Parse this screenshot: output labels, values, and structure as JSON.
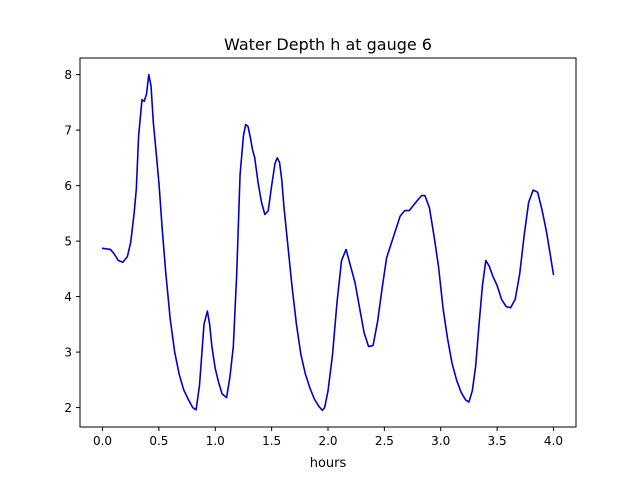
{
  "chart_data": {
    "type": "line",
    "title": "Water Depth h at gauge 6",
    "xlabel": "hours",
    "ylabel": "",
    "xlim": [
      -0.2,
      4.2
    ],
    "ylim": [
      1.65,
      8.3
    ],
    "xticks": [
      0.0,
      0.5,
      1.0,
      1.5,
      2.0,
      2.5,
      3.0,
      3.5,
      4.0
    ],
    "xtick_labels": [
      "0.0",
      "0.5",
      "1.0",
      "1.5",
      "2.0",
      "2.5",
      "3.0",
      "3.5",
      "4.0"
    ],
    "yticks": [
      2,
      3,
      4,
      5,
      6,
      7,
      8
    ],
    "ytick_labels": [
      "2",
      "3",
      "4",
      "5",
      "6",
      "7",
      "8"
    ],
    "grid": false,
    "series": [
      {
        "color": "#0000cc",
        "x": [
          0.0,
          0.07,
          0.1,
          0.14,
          0.18,
          0.22,
          0.25,
          0.28,
          0.3,
          0.32,
          0.35,
          0.37,
          0.39,
          0.41,
          0.43,
          0.45,
          0.48,
          0.5,
          0.53,
          0.56,
          0.6,
          0.64,
          0.68,
          0.72,
          0.76,
          0.8,
          0.83,
          0.86,
          0.88,
          0.9,
          0.93,
          0.95,
          0.97,
          1.0,
          1.03,
          1.06,
          1.1,
          1.13,
          1.16,
          1.19,
          1.22,
          1.25,
          1.27,
          1.29,
          1.31,
          1.33,
          1.35,
          1.38,
          1.41,
          1.44,
          1.47,
          1.5,
          1.53,
          1.55,
          1.57,
          1.59,
          1.61,
          1.64,
          1.68,
          1.72,
          1.76,
          1.8,
          1.84,
          1.88,
          1.92,
          1.95,
          1.97,
          2.0,
          2.04,
          2.08,
          2.12,
          2.16,
          2.2,
          2.24,
          2.28,
          2.32,
          2.36,
          2.4,
          2.44,
          2.48,
          2.52,
          2.56,
          2.6,
          2.64,
          2.68,
          2.72,
          2.76,
          2.8,
          2.83,
          2.86,
          2.9,
          2.94,
          2.98,
          3.02,
          3.06,
          3.1,
          3.14,
          3.18,
          3.22,
          3.25,
          3.28,
          3.31,
          3.34,
          3.37,
          3.4,
          3.43,
          3.46,
          3.5,
          3.54,
          3.58,
          3.62,
          3.66,
          3.7,
          3.74,
          3.78,
          3.82,
          3.86,
          3.9,
          3.94,
          4.0
        ],
        "y": [
          4.87,
          4.85,
          4.78,
          4.65,
          4.62,
          4.72,
          4.98,
          5.5,
          5.95,
          6.9,
          7.55,
          7.52,
          7.65,
          8.0,
          7.8,
          7.15,
          6.5,
          6.05,
          5.2,
          4.45,
          3.6,
          3.0,
          2.6,
          2.32,
          2.15,
          2.0,
          1.96,
          2.4,
          2.95,
          3.5,
          3.74,
          3.5,
          3.1,
          2.7,
          2.45,
          2.25,
          2.18,
          2.55,
          3.1,
          4.4,
          6.2,
          6.9,
          7.1,
          7.07,
          6.88,
          6.65,
          6.5,
          6.05,
          5.7,
          5.48,
          5.55,
          6.0,
          6.4,
          6.5,
          6.42,
          6.1,
          5.6,
          5.0,
          4.2,
          3.5,
          2.95,
          2.6,
          2.35,
          2.15,
          2.02,
          1.95,
          2.0,
          2.3,
          2.95,
          3.9,
          4.65,
          4.85,
          4.55,
          4.25,
          3.8,
          3.35,
          3.1,
          3.12,
          3.55,
          4.15,
          4.7,
          4.95,
          5.2,
          5.45,
          5.55,
          5.55,
          5.65,
          5.75,
          5.82,
          5.82,
          5.6,
          5.1,
          4.55,
          3.8,
          3.25,
          2.8,
          2.5,
          2.28,
          2.14,
          2.1,
          2.3,
          2.75,
          3.5,
          4.2,
          4.65,
          4.55,
          4.38,
          4.2,
          3.95,
          3.82,
          3.8,
          3.95,
          4.4,
          5.1,
          5.7,
          5.92,
          5.88,
          5.55,
          5.15,
          4.4
        ]
      }
    ]
  }
}
